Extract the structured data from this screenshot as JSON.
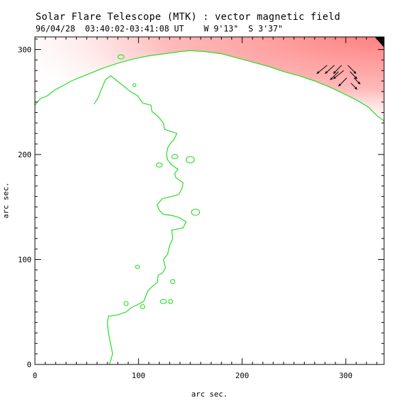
{
  "header": {
    "title": "Solar Flare Telescope (MTK) : vector magnetic field",
    "subtitle": "96/04/28  03:40:02-03:41:08 UT    W 9'13\"  S 3'37\""
  },
  "chart_data": {
    "type": "contour",
    "xlabel": "arc sec.",
    "ylabel": "arc sec.",
    "xlim": [
      0,
      337
    ],
    "ylim": [
      0,
      312
    ],
    "xticks": [
      0,
      100,
      200,
      300
    ],
    "yticks": [
      0,
      100,
      200,
      300
    ],
    "colors": {
      "contour": "#22dd22",
      "field_shade": "#ff9999",
      "vector": "#000000",
      "axes": "#000000"
    },
    "limb_contour": [
      [
        0,
        247
      ],
      [
        5,
        253
      ],
      [
        12,
        256
      ],
      [
        20,
        262
      ],
      [
        28,
        266
      ],
      [
        35,
        270
      ],
      [
        45,
        274
      ],
      [
        55,
        278
      ],
      [
        65,
        282
      ],
      [
        80,
        287
      ],
      [
        95,
        291
      ],
      [
        110,
        294
      ],
      [
        125,
        296
      ],
      [
        140,
        298
      ],
      [
        150,
        299
      ],
      [
        165,
        298
      ],
      [
        180,
        296
      ],
      [
        195,
        292
      ],
      [
        210,
        288
      ],
      [
        225,
        284
      ],
      [
        240,
        279
      ],
      [
        255,
        275
      ],
      [
        270,
        270
      ],
      [
        285,
        264
      ],
      [
        300,
        257
      ],
      [
        312,
        251
      ],
      [
        322,
        245
      ],
      [
        330,
        237
      ],
      [
        337,
        232
      ]
    ],
    "neutral_line": [
      [
        72,
        0
      ],
      [
        75,
        10
      ],
      [
        73,
        20
      ],
      [
        71,
        30
      ],
      [
        70,
        40
      ],
      [
        71,
        46
      ],
      [
        79,
        47
      ],
      [
        88,
        50
      ],
      [
        93,
        54
      ],
      [
        99,
        57
      ],
      [
        105,
        60
      ],
      [
        109,
        70
      ],
      [
        114,
        75
      ],
      [
        118,
        78
      ],
      [
        119,
        85
      ],
      [
        123,
        87
      ],
      [
        126,
        92
      ],
      [
        124,
        100
      ],
      [
        128,
        105
      ],
      [
        130,
        113
      ],
      [
        133,
        120
      ],
      [
        132,
        128
      ],
      [
        143,
        130
      ],
      [
        146,
        136
      ],
      [
        139,
        140
      ],
      [
        132,
        142
      ],
      [
        124,
        143
      ],
      [
        120,
        147
      ],
      [
        118,
        152
      ],
      [
        123,
        158
      ],
      [
        132,
        160
      ],
      [
        139,
        162
      ],
      [
        142,
        168
      ],
      [
        143,
        173
      ],
      [
        136,
        178
      ],
      [
        135,
        182
      ],
      [
        138,
        186
      ],
      [
        132,
        190
      ],
      [
        128,
        195
      ],
      [
        127,
        200
      ],
      [
        128,
        206
      ],
      [
        131,
        211
      ],
      [
        134,
        214
      ],
      [
        137,
        220
      ],
      [
        131,
        222
      ],
      [
        125,
        224
      ],
      [
        124,
        230
      ],
      [
        119,
        236
      ],
      [
        113,
        241
      ],
      [
        112,
        247
      ],
      [
        104,
        249
      ],
      [
        99,
        256
      ],
      [
        92,
        260
      ],
      [
        86,
        265
      ],
      [
        82,
        268
      ],
      [
        77,
        272
      ],
      [
        73,
        275
      ],
      [
        68,
        271
      ],
      [
        64,
        262
      ],
      [
        61,
        254
      ],
      [
        57,
        248
      ]
    ],
    "contour_islands": [
      {
        "center": [
          83,
          293
        ],
        "r": [
          3,
          2
        ]
      },
      {
        "center": [
          96,
          266
        ],
        "r": [
          1.5,
          1.5
        ]
      },
      {
        "center": [
          135,
          198
        ],
        "r": [
          3,
          2
        ]
      },
      {
        "center": [
          150,
          195
        ],
        "r": [
          4,
          3
        ]
      },
      {
        "center": [
          120,
          190
        ],
        "r": [
          3,
          2
        ]
      },
      {
        "center": [
          155,
          145
        ],
        "r": [
          4,
          3
        ]
      },
      {
        "center": [
          99,
          93
        ],
        "r": [
          2,
          1.5
        ]
      },
      {
        "center": [
          88,
          58
        ],
        "r": [
          2,
          2
        ]
      },
      {
        "center": [
          104,
          55
        ],
        "r": [
          2,
          2
        ]
      },
      {
        "center": [
          124,
          60
        ],
        "r": [
          3,
          2
        ]
      },
      {
        "center": [
          131,
          60
        ],
        "r": [
          2,
          2
        ]
      },
      {
        "center": [
          133,
          79
        ],
        "r": [
          2,
          2
        ]
      }
    ],
    "vectors": [
      {
        "x": 282,
        "y": 285,
        "dx": -10,
        "dy": -8
      },
      {
        "x": 289,
        "y": 285,
        "dx": -9,
        "dy": -8
      },
      {
        "x": 296,
        "y": 285,
        "dx": -8,
        "dy": -8
      },
      {
        "x": 302,
        "y": 285,
        "dx": 8,
        "dy": -8
      },
      {
        "x": 298,
        "y": 280,
        "dx": -10,
        "dy": -8
      },
      {
        "x": 304,
        "y": 279,
        "dx": 7,
        "dy": -7
      },
      {
        "x": 293,
        "y": 279,
        "dx": -8,
        "dy": -8
      },
      {
        "x": 301,
        "y": 273,
        "dx": -8,
        "dy": -8
      },
      {
        "x": 308,
        "y": 273,
        "dx": 6,
        "dy": -6
      },
      {
        "x": 305,
        "y": 268,
        "dx": 6,
        "dy": -6
      }
    ]
  }
}
